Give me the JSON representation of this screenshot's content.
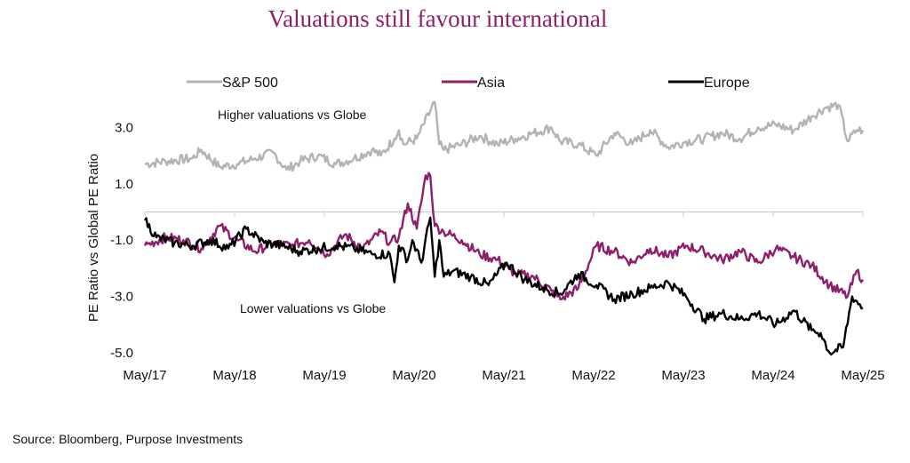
{
  "title": "Valuations still favour international",
  "source": "Source: Bloomberg, Purpose Investments",
  "colors": {
    "title": "#8e1f6b",
    "sp500": "#b3b3b3",
    "asia": "#8e1f6b",
    "europe": "#000000",
    "axis": "#c8c8c8"
  },
  "chart_data": {
    "type": "line",
    "ylabel": "PE Ratio vs Global PE Ratio",
    "xlabel": "",
    "ylim": [
      -5.0,
      3.8
    ],
    "xlim": [
      2017.37,
      2025.37
    ],
    "y_ticks": [
      3.0,
      1.0,
      -1.0,
      -3.0,
      -5.0
    ],
    "y_tick_labels": [
      "3.0",
      "1.0",
      "-1.0",
      "-3.0",
      "-5.0"
    ],
    "x_ticks": [
      2017.37,
      2018.37,
      2019.37,
      2020.37,
      2021.37,
      2022.37,
      2023.37,
      2024.37,
      2025.37
    ],
    "x_tick_labels": [
      "May/17",
      "May/18",
      "May/19",
      "May/20",
      "May/21",
      "May/22",
      "May/23",
      "May/24",
      "May/25"
    ],
    "annotations": {
      "upper": "Higher valuations vs Globe",
      "lower": "Lower valuations vs Globe"
    },
    "series": [
      {
        "name": "S&P 500",
        "x": [
          2017.37,
          2017.6,
          2017.9,
          2018.0,
          2018.2,
          2018.4,
          2018.6,
          2018.8,
          2018.95,
          2019.1,
          2019.3,
          2019.5,
          2019.7,
          2019.9,
          2020.0,
          2020.15,
          2020.2,
          2020.25,
          2020.4,
          2020.6,
          2020.65,
          2020.7,
          2020.9,
          2021.1,
          2021.3,
          2021.5,
          2021.7,
          2021.9,
          2022.0,
          2022.2,
          2022.4,
          2022.6,
          2022.8,
          2023.0,
          2023.2,
          2023.4,
          2023.6,
          2023.8,
          2024.0,
          2024.2,
          2024.4,
          2024.6,
          2024.8,
          2024.95,
          2025.1,
          2025.2,
          2025.3,
          2025.37
        ],
        "values": [
          1.7,
          1.8,
          1.9,
          2.2,
          1.6,
          1.7,
          1.9,
          2.1,
          1.5,
          1.8,
          2.0,
          1.7,
          1.9,
          2.2,
          2.0,
          2.6,
          2.9,
          2.4,
          2.6,
          3.9,
          2.4,
          2.2,
          2.4,
          2.7,
          2.4,
          2.6,
          2.8,
          3.0,
          2.5,
          2.4,
          2.0,
          2.8,
          2.4,
          2.9,
          2.3,
          2.5,
          2.6,
          2.8,
          2.6,
          3.0,
          3.1,
          2.9,
          3.4,
          3.7,
          3.8,
          2.5,
          2.9,
          2.9
        ]
      },
      {
        "name": "Asia",
        "x": [
          2017.37,
          2017.6,
          2017.8,
          2018.0,
          2018.2,
          2018.4,
          2018.6,
          2018.8,
          2019.0,
          2019.2,
          2019.4,
          2019.6,
          2019.8,
          2020.0,
          2020.1,
          2020.2,
          2020.3,
          2020.4,
          2020.5,
          2020.55,
          2020.6,
          2020.7,
          2020.9,
          2021.1,
          2021.3,
          2021.5,
          2021.7,
          2021.9,
          2022.0,
          2022.2,
          2022.4,
          2022.6,
          2022.8,
          2023.0,
          2023.2,
          2023.4,
          2023.6,
          2023.8,
          2024.0,
          2024.2,
          2024.4,
          2024.6,
          2024.8,
          2025.0,
          2025.2,
          2025.3,
          2025.37
        ],
        "values": [
          -1.2,
          -0.9,
          -1.0,
          -1.3,
          -0.5,
          -1.0,
          -1.4,
          -1.1,
          -1.2,
          -1.0,
          -1.5,
          -0.8,
          -1.3,
          -0.7,
          -1.1,
          -0.9,
          0.3,
          -0.6,
          1.3,
          1.3,
          -0.5,
          -0.7,
          -1.0,
          -1.5,
          -1.7,
          -2.2,
          -2.3,
          -2.8,
          -3.1,
          -2.7,
          -1.2,
          -1.4,
          -1.8,
          -1.3,
          -1.6,
          -1.2,
          -1.4,
          -1.7,
          -1.4,
          -1.8,
          -1.3,
          -1.6,
          -1.9,
          -2.6,
          -3.0,
          -2.1,
          -2.4
        ]
      },
      {
        "name": "Europe",
        "x": [
          2017.37,
          2017.5,
          2017.7,
          2017.9,
          2018.1,
          2018.3,
          2018.5,
          2018.7,
          2018.9,
          2019.1,
          2019.3,
          2019.5,
          2019.7,
          2019.9,
          2020.1,
          2020.15,
          2020.2,
          2020.3,
          2020.35,
          2020.45,
          2020.55,
          2020.6,
          2020.65,
          2020.7,
          2020.8,
          2021.0,
          2021.2,
          2021.4,
          2021.6,
          2021.8,
          2022.0,
          2022.2,
          2022.4,
          2022.6,
          2022.8,
          2023.0,
          2023.2,
          2023.4,
          2023.6,
          2023.8,
          2024.0,
          2024.2,
          2024.4,
          2024.6,
          2024.8,
          2024.9,
          2025.0,
          2025.15,
          2025.25,
          2025.37
        ],
        "values": [
          -0.3,
          -0.9,
          -1.1,
          -1.2,
          -1.0,
          -1.3,
          -0.6,
          -1.1,
          -1.2,
          -1.4,
          -1.3,
          -1.2,
          -1.3,
          -1.5,
          -1.5,
          -2.5,
          -1.2,
          -1.7,
          -1.0,
          -1.8,
          -0.2,
          -2.3,
          -1.0,
          -2.3,
          -2.1,
          -2.3,
          -2.6,
          -1.8,
          -2.4,
          -2.7,
          -2.9,
          -2.2,
          -2.6,
          -3.1,
          -2.9,
          -2.7,
          -2.5,
          -3.0,
          -3.8,
          -3.6,
          -3.8,
          -3.6,
          -4.0,
          -3.5,
          -4.2,
          -4.3,
          -5.0,
          -4.8,
          -3.0,
          -3.4
        ]
      }
    ]
  }
}
